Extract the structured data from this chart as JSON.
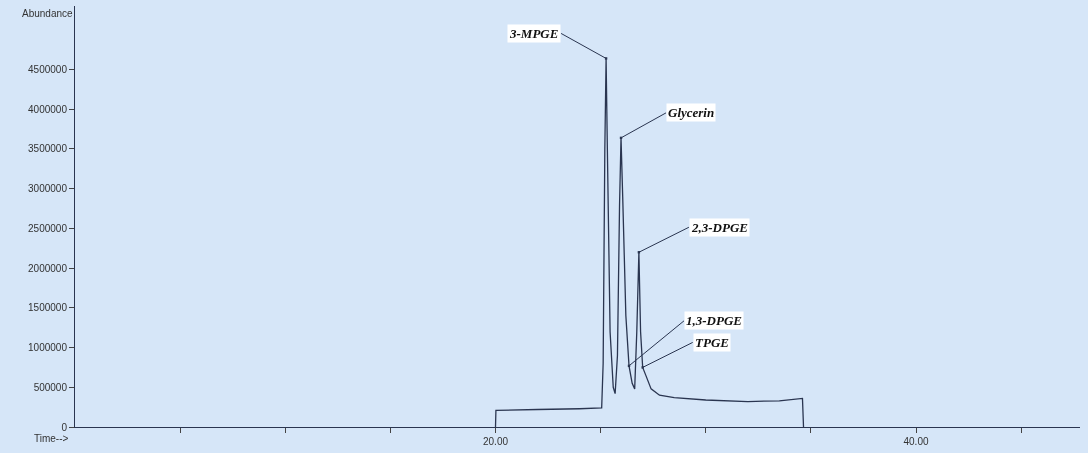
{
  "chart_data": {
    "type": "line",
    "xlabel": "Time-->",
    "ylabel": "Abundance",
    "x": [
      20.0,
      20.02,
      22,
      24,
      25.05,
      25.12,
      25.2,
      25.26,
      25.32,
      25.45,
      25.6,
      25.69,
      25.8,
      25.9,
      25.97,
      26.05,
      26.2,
      26.35,
      26.5,
      26.62,
      26.72,
      26.82,
      26.9,
      27.0,
      27.15,
      27.4,
      27.8,
      28.5,
      30,
      32,
      33.5,
      34.6,
      34.65
    ],
    "series": [
      {
        "color": "#2a3550",
        "values": [
          0,
          210000,
          220000,
          230000,
          240000,
          800000,
          3500000,
          4640000,
          3500000,
          1200000,
          500000,
          420000,
          900000,
          2800000,
          3640000,
          2900000,
          1400000,
          770000,
          550000,
          480000,
          1200000,
          2200000,
          1200000,
          750000,
          650000,
          480000,
          400000,
          370000,
          340000,
          320000,
          330000,
          360000,
          0
        ]
      }
    ],
    "xlim": [
      0,
      47.8
    ],
    "ylim": [
      0,
      5300000
    ],
    "xticks": [
      {
        "value": 5,
        "label": null
      },
      {
        "value": 10,
        "label": null
      },
      {
        "value": 15,
        "label": null
      },
      {
        "value": 20,
        "label": "20.00"
      },
      {
        "value": 25,
        "label": null
      },
      {
        "value": 30,
        "label": null
      },
      {
        "value": 35,
        "label": null
      },
      {
        "value": 40,
        "label": "40.00"
      },
      {
        "value": 45,
        "label": null
      }
    ],
    "yticks": [
      0,
      500000,
      1000000,
      1500000,
      2000000,
      2500000,
      3000000,
      3500000,
      4000000,
      4500000
    ],
    "annotations": [
      {
        "text": "3-MPGE",
        "x": 25.26,
        "y": 4640000
      },
      {
        "text": "Glycerin",
        "x": 25.97,
        "y": 3640000
      },
      {
        "text": "2,3-DPGE",
        "x": 26.82,
        "y": 2200000
      },
      {
        "text": "1,3-DPGE",
        "x": 26.35,
        "y": 770000
      },
      {
        "text": "TPGE",
        "x": 27.0,
        "y": 750000
      }
    ],
    "marker": "none",
    "line_style": "solid"
  }
}
